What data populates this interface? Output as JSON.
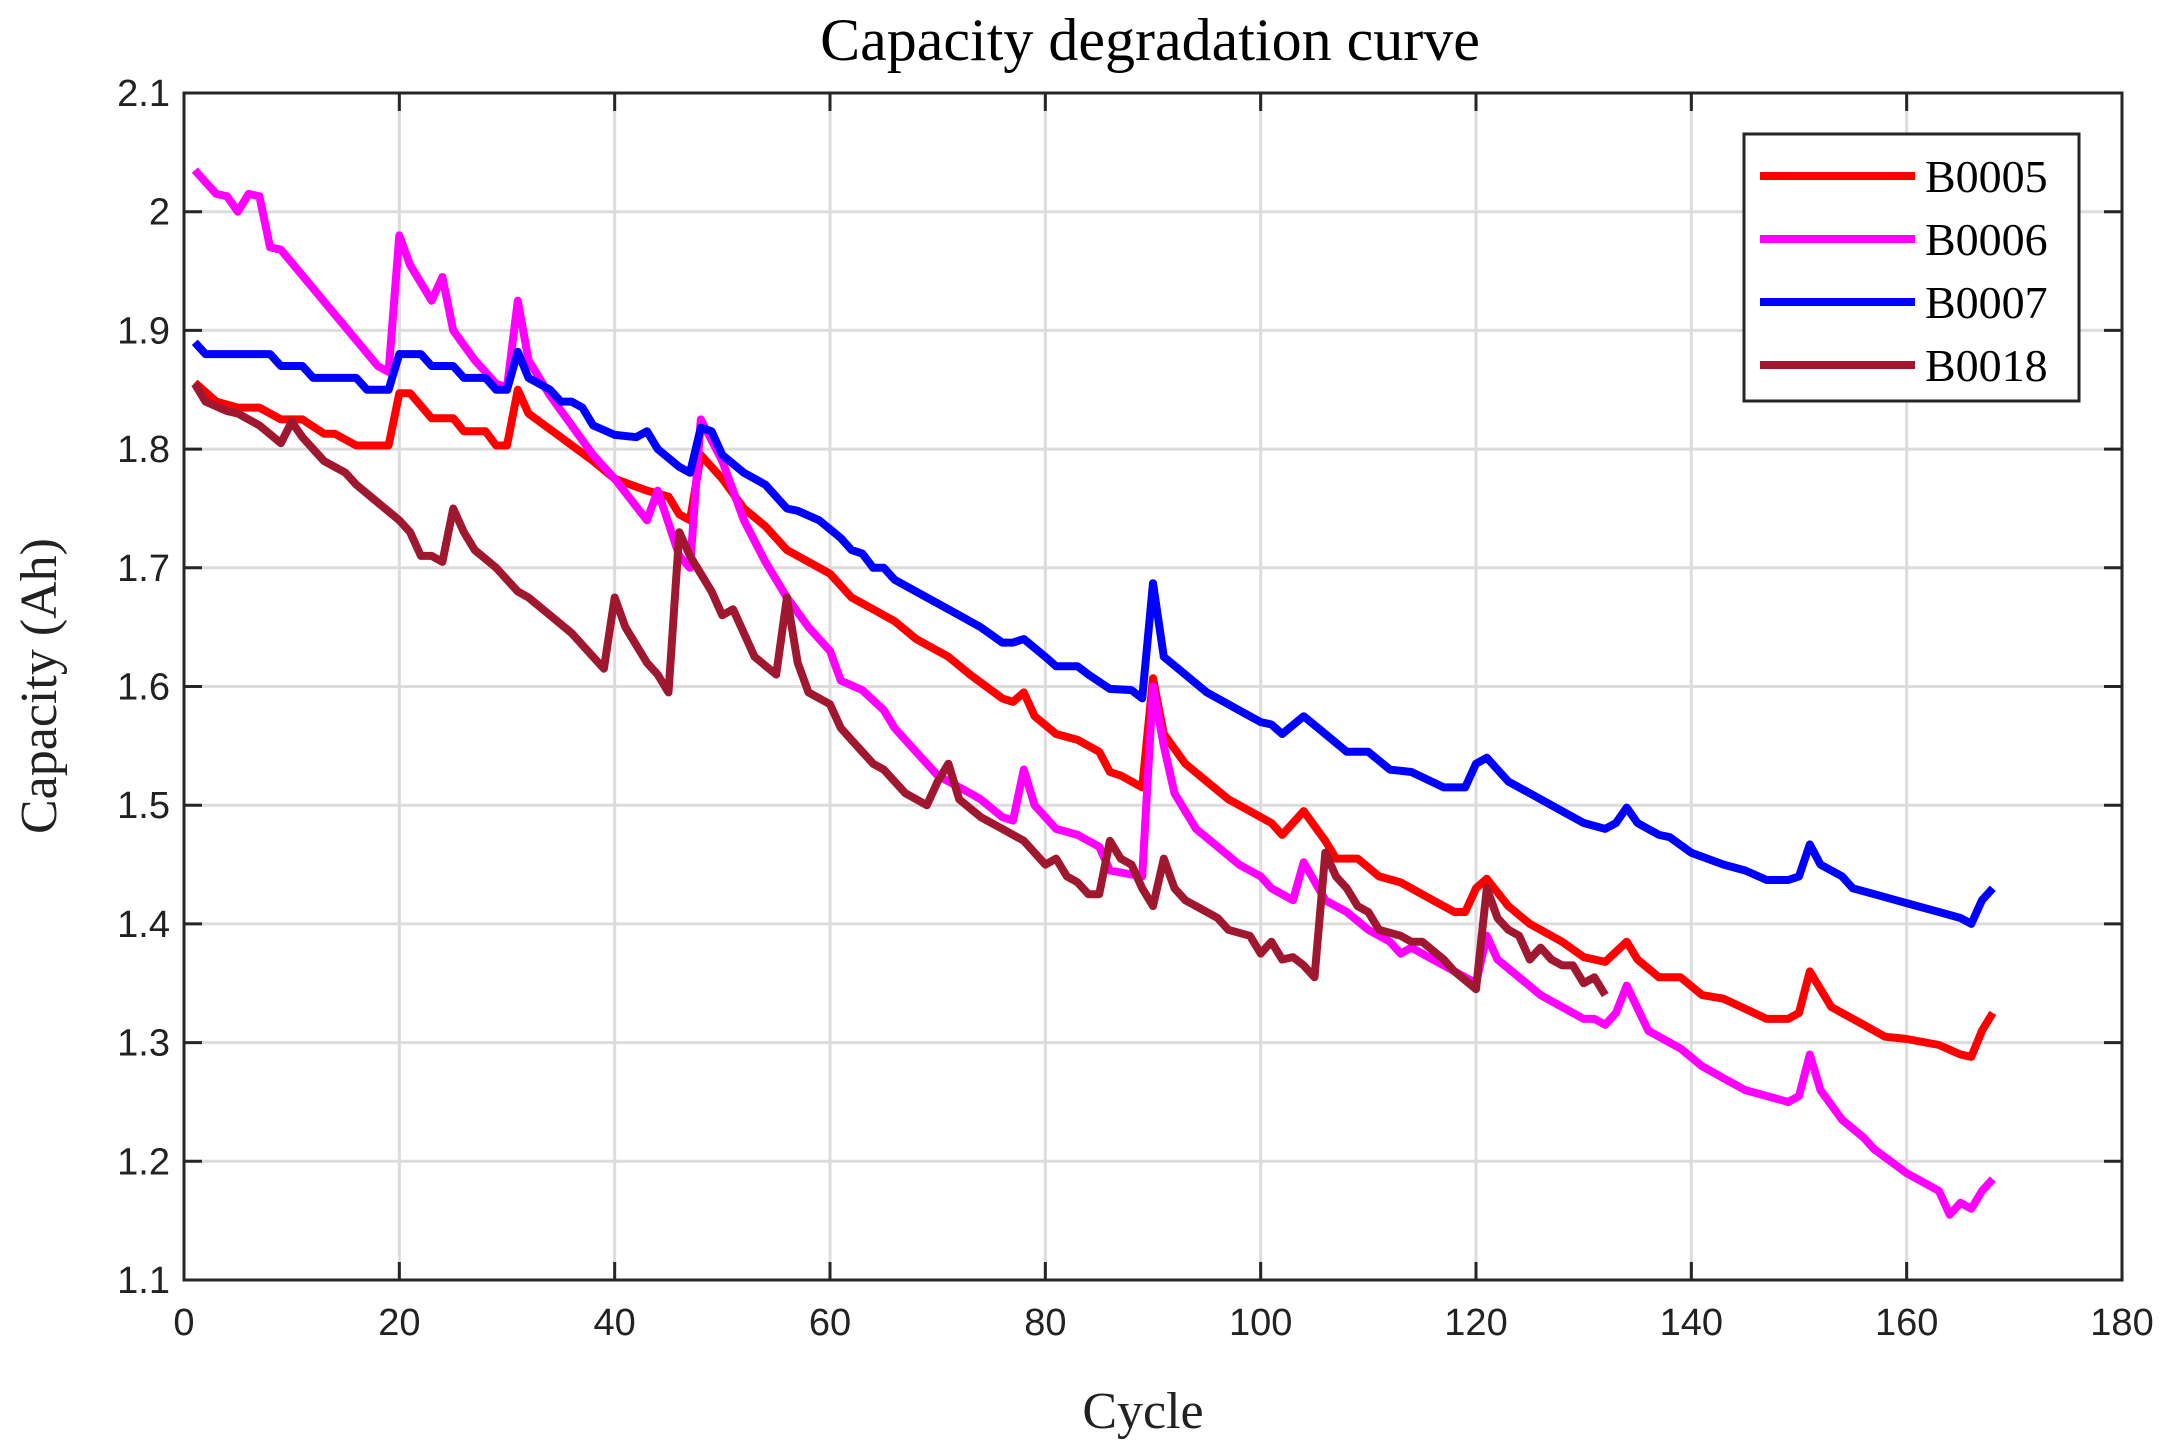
{
  "chart_data": {
    "type": "line",
    "title": "Capacity degradation curve",
    "xlabel": "Cycle",
    "ylabel": "Capacity (Ah)",
    "xlim": [
      0,
      180
    ],
    "ylim": [
      1.1,
      2.1
    ],
    "xticks": [
      "0",
      "20",
      "40",
      "60",
      "80",
      "100",
      "120",
      "140",
      "160",
      "180"
    ],
    "yticks": [
      "1.1",
      "1.2",
      "1.3",
      "1.4",
      "1.5",
      "1.6",
      "1.7",
      "1.8",
      "1.9",
      "2",
      "2.1"
    ],
    "grid": true,
    "legend_position": "top-right",
    "series": [
      {
        "name": "B0005",
        "color": "#ff0000",
        "x": [
          1,
          3,
          5,
          7,
          9,
          11,
          13,
          14,
          16,
          19,
          20,
          21,
          23,
          25,
          26,
          28,
          29,
          30,
          31,
          32,
          35,
          38,
          40,
          43,
          45,
          46,
          47,
          48,
          50,
          52,
          54,
          56,
          58,
          60,
          62,
          64,
          66,
          68,
          71,
          73,
          76,
          77,
          78,
          79,
          81,
          83,
          85,
          86,
          87,
          89,
          90,
          91,
          93,
          95,
          97,
          99,
          101,
          102,
          104,
          106,
          107,
          109,
          111,
          113,
          116,
          118,
          119,
          120,
          121,
          123,
          125,
          128,
          130,
          132,
          134,
          135,
          137,
          139,
          141,
          143,
          147,
          149,
          150,
          151,
          153,
          156,
          158,
          160,
          163,
          165,
          166,
          167,
          168
        ],
        "y": [
          1.856,
          1.84,
          1.835,
          1.835,
          1.825,
          1.825,
          1.813,
          1.813,
          1.803,
          1.803,
          1.847,
          1.847,
          1.826,
          1.826,
          1.815,
          1.815,
          1.803,
          1.803,
          1.85,
          1.83,
          1.81,
          1.79,
          1.775,
          1.765,
          1.76,
          1.745,
          1.74,
          1.795,
          1.775,
          1.75,
          1.735,
          1.715,
          1.705,
          1.695,
          1.675,
          1.665,
          1.655,
          1.64,
          1.625,
          1.61,
          1.59,
          1.587,
          1.595,
          1.575,
          1.56,
          1.555,
          1.545,
          1.528,
          1.525,
          1.515,
          1.607,
          1.56,
          1.535,
          1.52,
          1.505,
          1.495,
          1.485,
          1.475,
          1.495,
          1.47,
          1.455,
          1.455,
          1.44,
          1.435,
          1.42,
          1.41,
          1.41,
          1.43,
          1.438,
          1.415,
          1.4,
          1.385,
          1.372,
          1.368,
          1.385,
          1.37,
          1.355,
          1.355,
          1.34,
          1.337,
          1.32,
          1.32,
          1.325,
          1.36,
          1.33,
          1.315,
          1.305,
          1.303,
          1.298,
          1.29,
          1.288,
          1.31,
          1.325
        ]
      },
      {
        "name": "B0006",
        "color": "#ff00ff",
        "x": [
          1,
          3,
          4,
          5,
          6,
          7,
          8,
          9,
          18,
          19,
          20,
          21,
          22,
          23,
          24,
          25,
          27,
          29,
          30,
          31,
          32,
          34,
          36,
          38,
          40,
          43,
          44,
          46,
          47,
          48,
          50,
          52,
          54,
          56,
          58,
          60,
          61,
          63,
          65,
          66,
          68,
          70,
          73,
          74,
          76,
          77,
          78,
          79,
          81,
          83,
          85,
          86,
          89,
          90,
          91,
          92,
          94,
          96,
          98,
          100,
          101,
          103,
          104,
          106,
          108,
          110,
          112,
          113,
          114,
          116,
          119,
          120,
          121,
          122,
          124,
          126,
          128,
          130,
          131,
          132,
          133,
          134,
          136,
          138,
          139,
          141,
          142,
          143,
          145,
          147,
          149,
          150,
          151,
          152,
          154,
          156,
          157,
          160,
          162,
          163,
          164,
          165,
          166,
          167,
          168
        ],
        "y": [
          2.035,
          2.015,
          2.013,
          2.0,
          2.015,
          2.013,
          1.97,
          1.968,
          1.87,
          1.865,
          1.98,
          1.955,
          1.94,
          1.925,
          1.945,
          1.9,
          1.875,
          1.855,
          1.852,
          1.925,
          1.875,
          1.845,
          1.82,
          1.795,
          1.775,
          1.74,
          1.765,
          1.71,
          1.7,
          1.825,
          1.79,
          1.74,
          1.705,
          1.675,
          1.65,
          1.63,
          1.605,
          1.597,
          1.58,
          1.565,
          1.545,
          1.525,
          1.51,
          1.505,
          1.49,
          1.487,
          1.53,
          1.5,
          1.48,
          1.475,
          1.465,
          1.445,
          1.44,
          1.6,
          1.55,
          1.51,
          1.48,
          1.465,
          1.45,
          1.44,
          1.43,
          1.42,
          1.452,
          1.42,
          1.41,
          1.395,
          1.385,
          1.375,
          1.38,
          1.37,
          1.355,
          1.35,
          1.39,
          1.37,
          1.355,
          1.34,
          1.33,
          1.32,
          1.32,
          1.315,
          1.325,
          1.348,
          1.31,
          1.3,
          1.295,
          1.28,
          1.275,
          1.27,
          1.26,
          1.255,
          1.25,
          1.255,
          1.29,
          1.26,
          1.235,
          1.22,
          1.21,
          1.19,
          1.18,
          1.175,
          1.155,
          1.165,
          1.16,
          1.175,
          1.185
        ]
      },
      {
        "name": "B0007",
        "color": "#0000ff",
        "x": [
          1,
          2,
          5,
          8,
          9,
          11,
          12,
          16,
          17,
          19,
          20,
          22,
          23,
          25,
          26,
          28,
          29,
          30,
          31,
          32,
          34,
          35,
          36,
          37,
          38,
          40,
          42,
          43,
          44,
          46,
          47,
          48,
          49,
          50,
          52,
          54,
          56,
          57,
          59,
          61,
          62,
          63,
          64,
          65,
          66,
          69,
          72,
          74,
          76,
          77,
          78,
          80,
          81,
          83,
          84,
          86,
          88,
          89,
          90,
          91,
          93,
          95,
          98,
          100,
          101,
          102,
          104,
          106,
          108,
          110,
          112,
          114,
          117,
          119,
          120,
          121,
          123,
          125,
          128,
          130,
          132,
          133,
          134,
          135,
          137,
          138,
          140,
          143,
          145,
          147,
          149,
          150,
          151,
          152,
          154,
          155,
          157,
          159,
          161,
          163,
          165,
          166,
          167,
          168
        ],
        "y": [
          1.89,
          1.88,
          1.88,
          1.88,
          1.87,
          1.87,
          1.86,
          1.86,
          1.85,
          1.85,
          1.88,
          1.88,
          1.87,
          1.87,
          1.86,
          1.86,
          1.85,
          1.85,
          1.882,
          1.86,
          1.85,
          1.84,
          1.84,
          1.835,
          1.82,
          1.812,
          1.81,
          1.815,
          1.8,
          1.785,
          1.78,
          1.818,
          1.815,
          1.795,
          1.78,
          1.77,
          1.75,
          1.748,
          1.74,
          1.725,
          1.715,
          1.712,
          1.7,
          1.7,
          1.69,
          1.675,
          1.66,
          1.65,
          1.637,
          1.637,
          1.64,
          1.625,
          1.617,
          1.617,
          1.61,
          1.598,
          1.597,
          1.59,
          1.687,
          1.625,
          1.61,
          1.595,
          1.58,
          1.57,
          1.568,
          1.56,
          1.575,
          1.56,
          1.545,
          1.545,
          1.53,
          1.528,
          1.515,
          1.515,
          1.535,
          1.54,
          1.52,
          1.51,
          1.495,
          1.485,
          1.48,
          1.485,
          1.498,
          1.485,
          1.475,
          1.473,
          1.46,
          1.45,
          1.445,
          1.437,
          1.437,
          1.44,
          1.467,
          1.45,
          1.44,
          1.43,
          1.425,
          1.42,
          1.415,
          1.41,
          1.405,
          1.4,
          1.42,
          1.43
        ]
      },
      {
        "name": "B0018",
        "color": "#a01830",
        "x": [
          1,
          2,
          4,
          5,
          7,
          9,
          10,
          11,
          13,
          15,
          16,
          18,
          20,
          21,
          22,
          23,
          24,
          25,
          26,
          27,
          29,
          30,
          31,
          32,
          34,
          36,
          38,
          39,
          40,
          41,
          43,
          44,
          45,
          46,
          47,
          49,
          50,
          51,
          53,
          55,
          56,
          57,
          58,
          60,
          61,
          62,
          64,
          65,
          67,
          69,
          70,
          71,
          72,
          74,
          76,
          78,
          80,
          81,
          82,
          83,
          84,
          85,
          86,
          87,
          88,
          89,
          90,
          91,
          92,
          93,
          95,
          96,
          97,
          99,
          100,
          101,
          102,
          103,
          104,
          105,
          106,
          107,
          108,
          109,
          110,
          111,
          113,
          114,
          115,
          117,
          118,
          120,
          121,
          122,
          123,
          124,
          125,
          126,
          127,
          128,
          129,
          130,
          131,
          132
        ],
        "y": [
          1.855,
          1.84,
          1.832,
          1.83,
          1.82,
          1.805,
          1.823,
          1.81,
          1.79,
          1.78,
          1.77,
          1.755,
          1.74,
          1.73,
          1.71,
          1.71,
          1.705,
          1.75,
          1.73,
          1.715,
          1.7,
          1.69,
          1.68,
          1.675,
          1.66,
          1.645,
          1.625,
          1.615,
          1.675,
          1.65,
          1.62,
          1.61,
          1.595,
          1.73,
          1.71,
          1.68,
          1.66,
          1.665,
          1.625,
          1.61,
          1.675,
          1.62,
          1.595,
          1.585,
          1.565,
          1.555,
          1.535,
          1.53,
          1.51,
          1.5,
          1.52,
          1.535,
          1.505,
          1.49,
          1.48,
          1.47,
          1.45,
          1.455,
          1.44,
          1.435,
          1.425,
          1.425,
          1.47,
          1.455,
          1.45,
          1.43,
          1.415,
          1.455,
          1.43,
          1.42,
          1.41,
          1.405,
          1.395,
          1.39,
          1.375,
          1.385,
          1.37,
          1.372,
          1.365,
          1.355,
          1.46,
          1.44,
          1.43,
          1.415,
          1.41,
          1.395,
          1.39,
          1.385,
          1.385,
          1.37,
          1.36,
          1.345,
          1.43,
          1.405,
          1.395,
          1.39,
          1.37,
          1.38,
          1.37,
          1.365,
          1.365,
          1.35,
          1.355,
          1.34
        ]
      }
    ]
  }
}
